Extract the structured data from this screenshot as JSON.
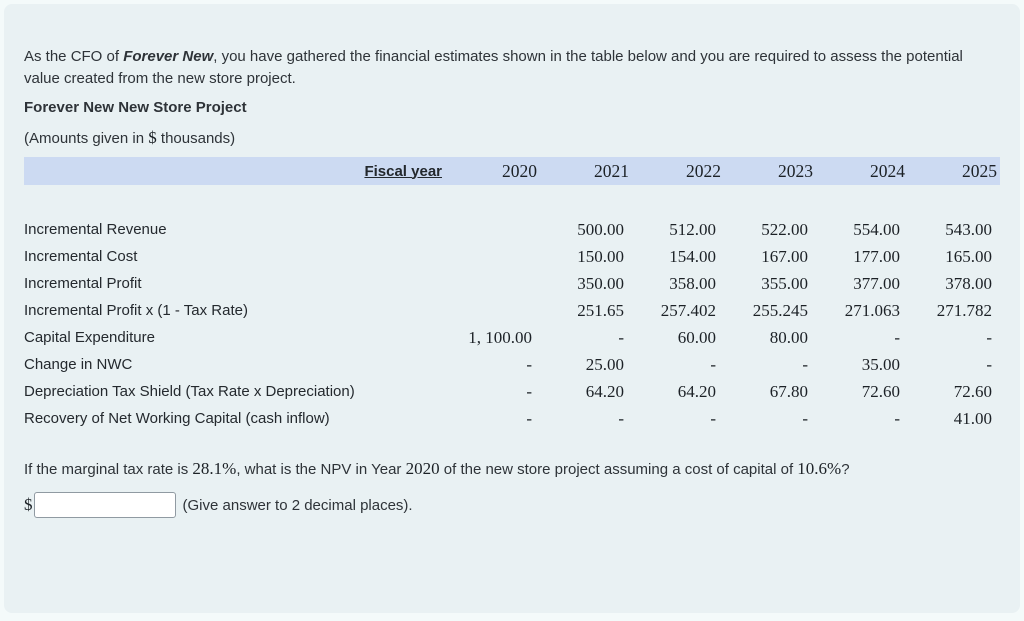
{
  "intro": {
    "pre": "As the CFO of ",
    "company": "Forever New",
    "post": ", you have gathered the financial estimates shown in the table below and you are required to assess the potential value created from the new store project."
  },
  "project_title": "Forever New New Store Project",
  "amounts_note": {
    "pre": "(Amounts given in ",
    "dollar": "$",
    "post": " thousands)"
  },
  "table": {
    "header_label": "Fiscal year",
    "years": [
      "2020",
      "2021",
      "2022",
      "2023",
      "2024",
      "2025"
    ],
    "rows": [
      {
        "label": "Incremental Revenue",
        "values": [
          "",
          "500.00",
          "512.00",
          "522.00",
          "554.00",
          "543.00"
        ]
      },
      {
        "label": "Incremental Cost",
        "values": [
          "",
          "150.00",
          "154.00",
          "167.00",
          "177.00",
          "165.00"
        ]
      },
      {
        "label": "Incremental Profit",
        "values": [
          "",
          "350.00",
          "358.00",
          "355.00",
          "377.00",
          "378.00"
        ]
      },
      {
        "label": "Incremental Profit x (1 - Tax Rate)",
        "values": [
          "",
          "251.65",
          "257.402",
          "255.245",
          "271.063",
          "271.782"
        ]
      },
      {
        "label": "Capital Expenditure",
        "values": [
          "1, 100.00",
          "-",
          "60.00",
          "80.00",
          "-",
          "-"
        ]
      },
      {
        "label": "Change in NWC",
        "values": [
          "-",
          "25.00",
          "-",
          "-",
          "35.00",
          "-"
        ]
      },
      {
        "label": "Depreciation Tax Shield (Tax Rate x Depreciation)",
        "values": [
          "-",
          "64.20",
          "64.20",
          "67.80",
          "72.60",
          "72.60"
        ]
      },
      {
        "label": "Recovery of Net Working Capital (cash inflow)",
        "values": [
          "-",
          "-",
          "-",
          "-",
          "-",
          "41.00"
        ]
      }
    ]
  },
  "question": {
    "pre": "If the marginal tax rate is ",
    "tax_rate": "28.1%",
    "mid1": ", what is the NPV in Year ",
    "year": "2020",
    "mid2": " of the new store project assuming a cost of capital of ",
    "cost_of_capital": "10.6%",
    "post": "?"
  },
  "answer": {
    "currency_symbol": "$",
    "value": "",
    "note": "(Give answer to 2 decimal places)."
  },
  "colors": {
    "page_bg": "#f4fafa",
    "card_bg": "#e9f1f3",
    "header_band": "#ccdaf2",
    "text": "#2e3338",
    "input_border": "#909aa2"
  }
}
